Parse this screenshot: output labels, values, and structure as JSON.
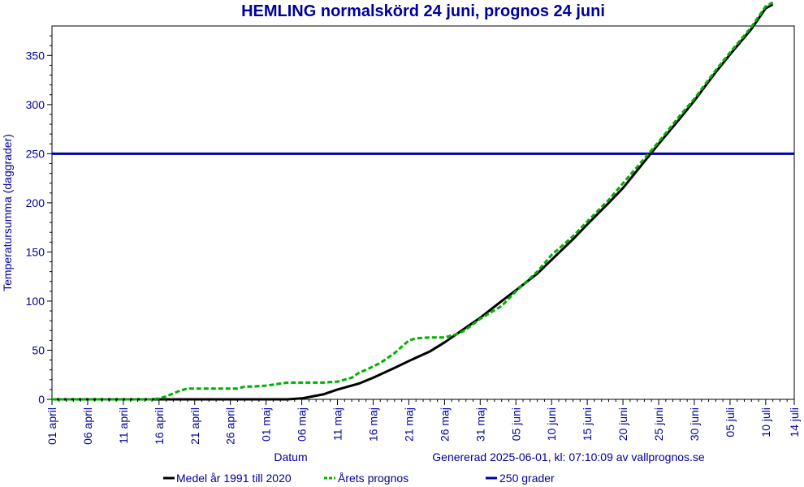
{
  "chart_data": {
    "type": "line",
    "title": "HEMLING normalskörd 24 juni, prognos 24 juni",
    "xlabel": "Datum",
    "ylabel": "Temperatursumma (daggrader)",
    "footer_note": "Genererad 2025-06-01, kl: 07:10:09 av vallprognos.se",
    "ylim": [
      0,
      380
    ],
    "yticks": [
      0,
      50,
      100,
      150,
      200,
      250,
      300,
      350
    ],
    "x_ticks": [
      "01 april",
      "06 april",
      "11 april",
      "16 april",
      "21 april",
      "26 april",
      "01 maj",
      "06 maj",
      "11 maj",
      "16 maj",
      "21 maj",
      "26 maj",
      "31 maj",
      "05 juni",
      "10 juni",
      "15 juni",
      "20 juni",
      "25 juni",
      "30 juni",
      "05 juli",
      "10 juli",
      "14 juli"
    ],
    "x_tick_day": [
      0,
      5,
      10,
      15,
      20,
      25,
      30,
      35,
      40,
      45,
      50,
      55,
      60,
      65,
      70,
      75,
      80,
      85,
      90,
      95,
      100,
      104
    ],
    "xlim_day": [
      0,
      104
    ],
    "grid": false,
    "legend_position": "bottom",
    "series": [
      {
        "name": "Medel år 1991 till 2020",
        "color": "#000000",
        "style": "solid",
        "x_day": [
          0,
          5,
          10,
          15,
          20,
          25,
          30,
          33,
          35,
          38,
          40,
          43,
          45,
          48,
          50,
          53,
          55,
          58,
          60,
          63,
          65,
          68,
          70,
          73,
          75,
          78,
          80,
          83,
          85,
          88,
          90,
          93,
          95,
          98,
          100,
          101
        ],
        "values": [
          0,
          0,
          0,
          0,
          0,
          0,
          0,
          0,
          1,
          5,
          10,
          16,
          22,
          32,
          39,
          49,
          58,
          73,
          83,
          100,
          111,
          128,
          142,
          163,
          178,
          200,
          215,
          242,
          260,
          286,
          304,
          333,
          351,
          377,
          398,
          402
        ]
      },
      {
        "name": "Årets prognos",
        "color": "#00b000",
        "style": "dashed",
        "x_day": [
          0,
          5,
          10,
          14,
          15,
          16,
          17,
          18,
          19,
          20,
          22,
          24,
          25,
          26,
          27,
          28,
          30,
          32,
          33,
          34,
          35,
          36,
          38,
          40,
          42,
          43,
          44,
          46,
          48,
          50,
          51,
          53,
          54,
          55,
          57,
          58,
          60,
          63,
          65,
          68,
          70,
          73,
          75,
          78,
          80,
          83,
          85,
          88,
          90,
          93,
          95,
          98,
          100,
          101
        ],
        "values": [
          0,
          0,
          0,
          0,
          1,
          3,
          6,
          9,
          11,
          11,
          11,
          11,
          11,
          11,
          13,
          13,
          14,
          16,
          17,
          17,
          17,
          17,
          17,
          18,
          22,
          27,
          30,
          37,
          47,
          60,
          62,
          63,
          63,
          63,
          67,
          71,
          82,
          95,
          110,
          130,
          147,
          166,
          181,
          203,
          220,
          245,
          262,
          289,
          306,
          335,
          353,
          379,
          400,
          404
        ]
      },
      {
        "name": "250 grader",
        "color": "#0000aa",
        "style": "solid",
        "x_day": [
          0,
          104
        ],
        "values": [
          250,
          250
        ]
      }
    ]
  }
}
